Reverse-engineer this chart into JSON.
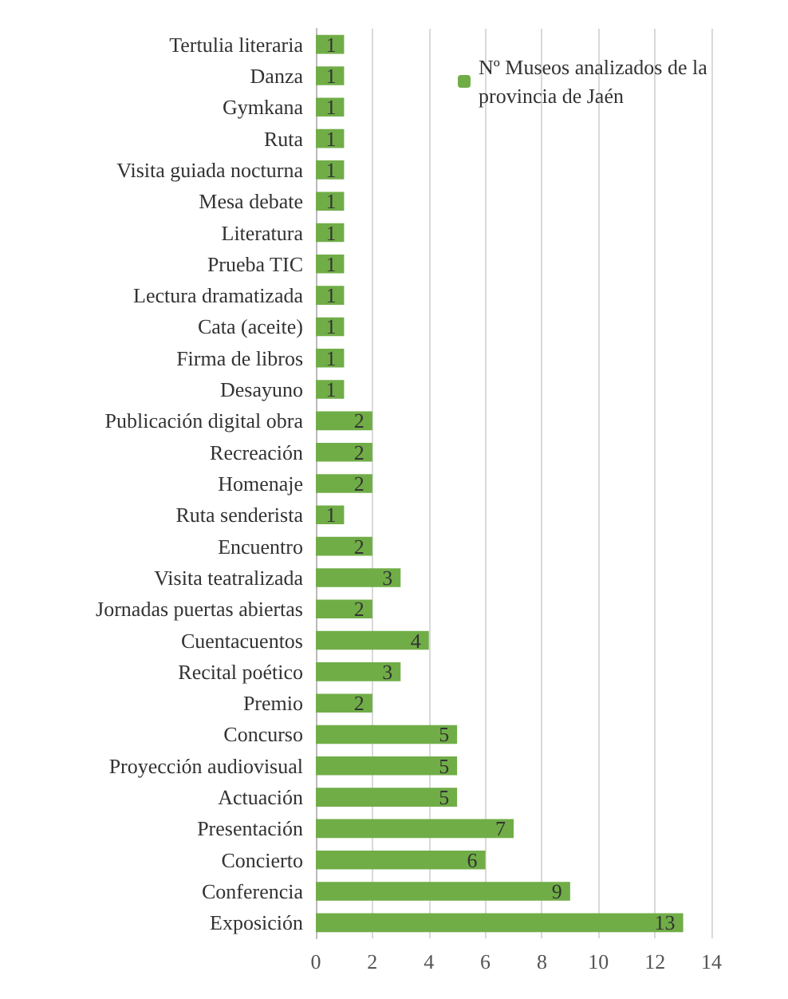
{
  "chart_data": {
    "type": "bar",
    "orientation": "horizontal",
    "categories": [
      "Tertulia literaria",
      "Danza",
      "Gymkana",
      "Ruta",
      "Visita guiada nocturna",
      "Mesa debate",
      "Literatura",
      "Prueba TIC",
      "Lectura dramatizada",
      "Cata (aceite)",
      "Firma de libros",
      "Desayuno",
      "Publicación digital obra",
      "Recreación",
      "Homenaje",
      "Ruta senderista",
      "Encuentro",
      "Visita teatralizada",
      "Jornadas puertas abiertas",
      "Cuentacuentos",
      "Recital poético",
      "Premio",
      "Concurso",
      "Proyección audiovisual",
      "Actuación",
      "Presentación",
      "Concierto",
      "Conferencia",
      "Exposición"
    ],
    "series": [
      {
        "name": "Nº Museos analizados de la provincia de Jaén",
        "color": "#70ad47",
        "values": [
          1,
          1,
          1,
          1,
          1,
          1,
          1,
          1,
          1,
          1,
          1,
          1,
          2,
          2,
          2,
          1,
          2,
          3,
          2,
          4,
          3,
          2,
          5,
          5,
          5,
          7,
          6,
          9,
          13
        ]
      }
    ],
    "xlim": [
      0,
      14
    ],
    "xticks": [
      0,
      2,
      4,
      6,
      8,
      10,
      12,
      14
    ],
    "grid": "x",
    "legend": "top right",
    "data_labels": true
  }
}
